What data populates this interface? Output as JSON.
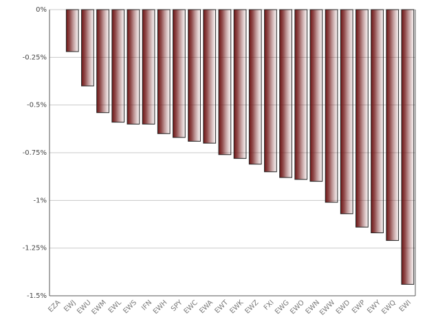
{
  "chart_data": {
    "type": "bar",
    "categories": [
      "EZA",
      "EWJ",
      "EWU",
      "EWM",
      "EWL",
      "EWS",
      "IFN",
      "EWH",
      "SPY",
      "EWC",
      "EWA",
      "EWT",
      "EWK",
      "EWZ",
      "FXI",
      "EWG",
      "EWO",
      "EWN",
      "EWW",
      "EWD",
      "EWP",
      "EWY",
      "EWQ",
      "EWI"
    ],
    "values": [
      0,
      -0.22,
      -0.4,
      -0.54,
      -0.59,
      -0.6,
      -0.6,
      -0.65,
      -0.67,
      -0.69,
      -0.7,
      -0.76,
      -0.78,
      -0.81,
      -0.85,
      -0.88,
      -0.89,
      -0.9,
      -1.01,
      -1.07,
      -1.14,
      -1.17,
      -1.21,
      -1.44
    ],
    "color": "#6e1414",
    "ylim": [
      -1.5,
      0
    ],
    "yticks": [
      {
        "value": 0,
        "label": "0%"
      },
      {
        "value": -0.25,
        "label": "-0.25%"
      },
      {
        "value": -0.5,
        "label": "-0.5%"
      },
      {
        "value": -0.75,
        "label": "-0.75%"
      },
      {
        "value": -1,
        "label": "-1%"
      },
      {
        "value": -1.25,
        "label": "-1.25%"
      },
      {
        "value": -1.5,
        "label": "-1.5%"
      }
    ],
    "grid": true
  }
}
